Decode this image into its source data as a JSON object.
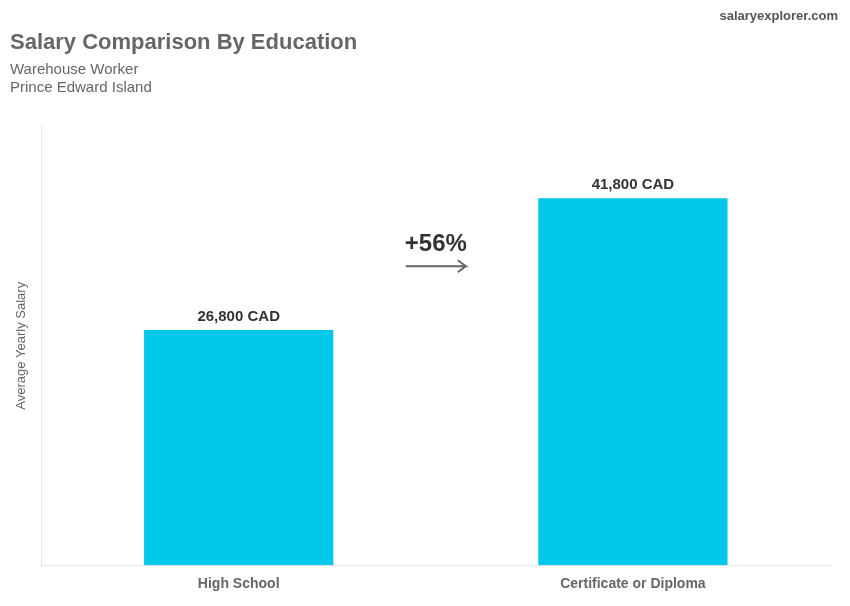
{
  "chart_data": {
    "type": "bar",
    "title": "Salary Comparison By Education",
    "subtitle": [
      "Warehouse Worker",
      "Prince Edward Island"
    ],
    "categories": [
      "High School",
      "Certificate or Diploma"
    ],
    "values": [
      26800,
      41800
    ],
    "value_labels": [
      "26,800 CAD",
      "41,800 CAD"
    ],
    "data_labels": true,
    "color": "#00c8e8",
    "ylabel": "Average Yearly Salary",
    "ylim": [
      0,
      50000
    ],
    "tick_labels": "x",
    "grid": false,
    "legend": false,
    "annotations": [
      "+56%",
      "salaryexplorer.com"
    ]
  }
}
